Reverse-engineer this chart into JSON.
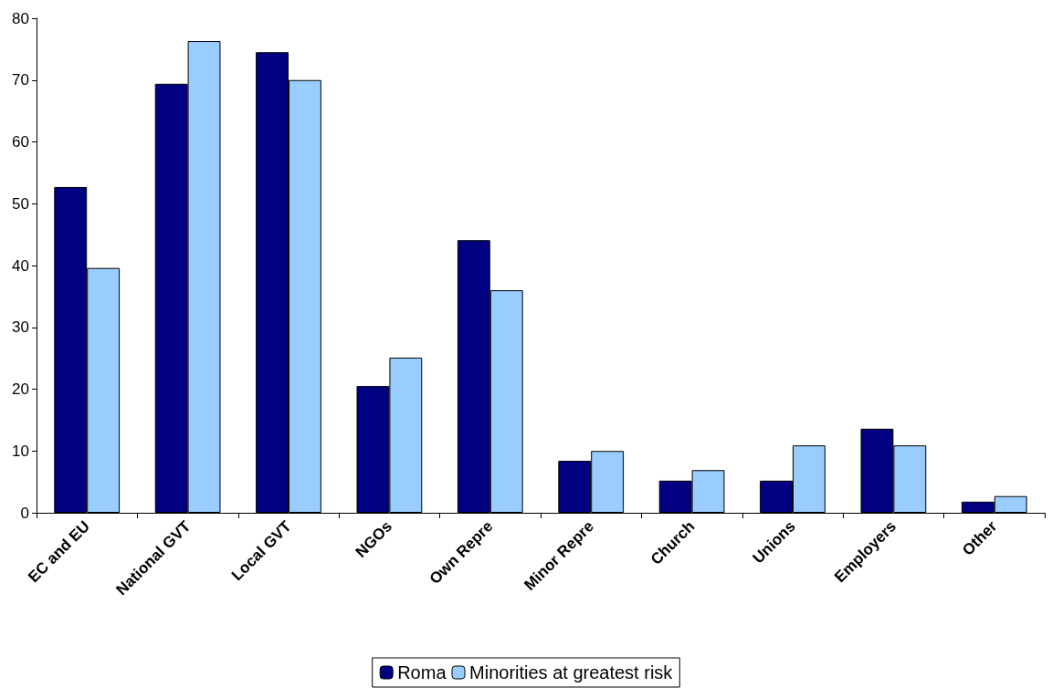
{
  "chart_data": {
    "type": "bar",
    "categories": [
      "EC and EU",
      "National GVT",
      "Local GVT",
      "NGOs",
      "Own Repre",
      "Minor Repre",
      "Church",
      "Unions",
      "Employers",
      "Other"
    ],
    "series": [
      {
        "name": "Roma",
        "color": "#000080",
        "values": [
          52.7,
          69.4,
          74.5,
          20.5,
          44.1,
          8.4,
          5.2,
          5.2,
          13.6,
          1.8
        ]
      },
      {
        "name": "Minorities at greatest risk",
        "color": "#99ccff",
        "values": [
          39.6,
          76.3,
          70.0,
          25.1,
          36.0,
          10.0,
          6.9,
          10.9,
          10.9,
          2.7
        ]
      }
    ],
    "ylim": [
      0,
      80
    ],
    "yticks": [
      0,
      10,
      20,
      30,
      40,
      50,
      60,
      70,
      80
    ],
    "grid": false,
    "legend": "bottom"
  }
}
